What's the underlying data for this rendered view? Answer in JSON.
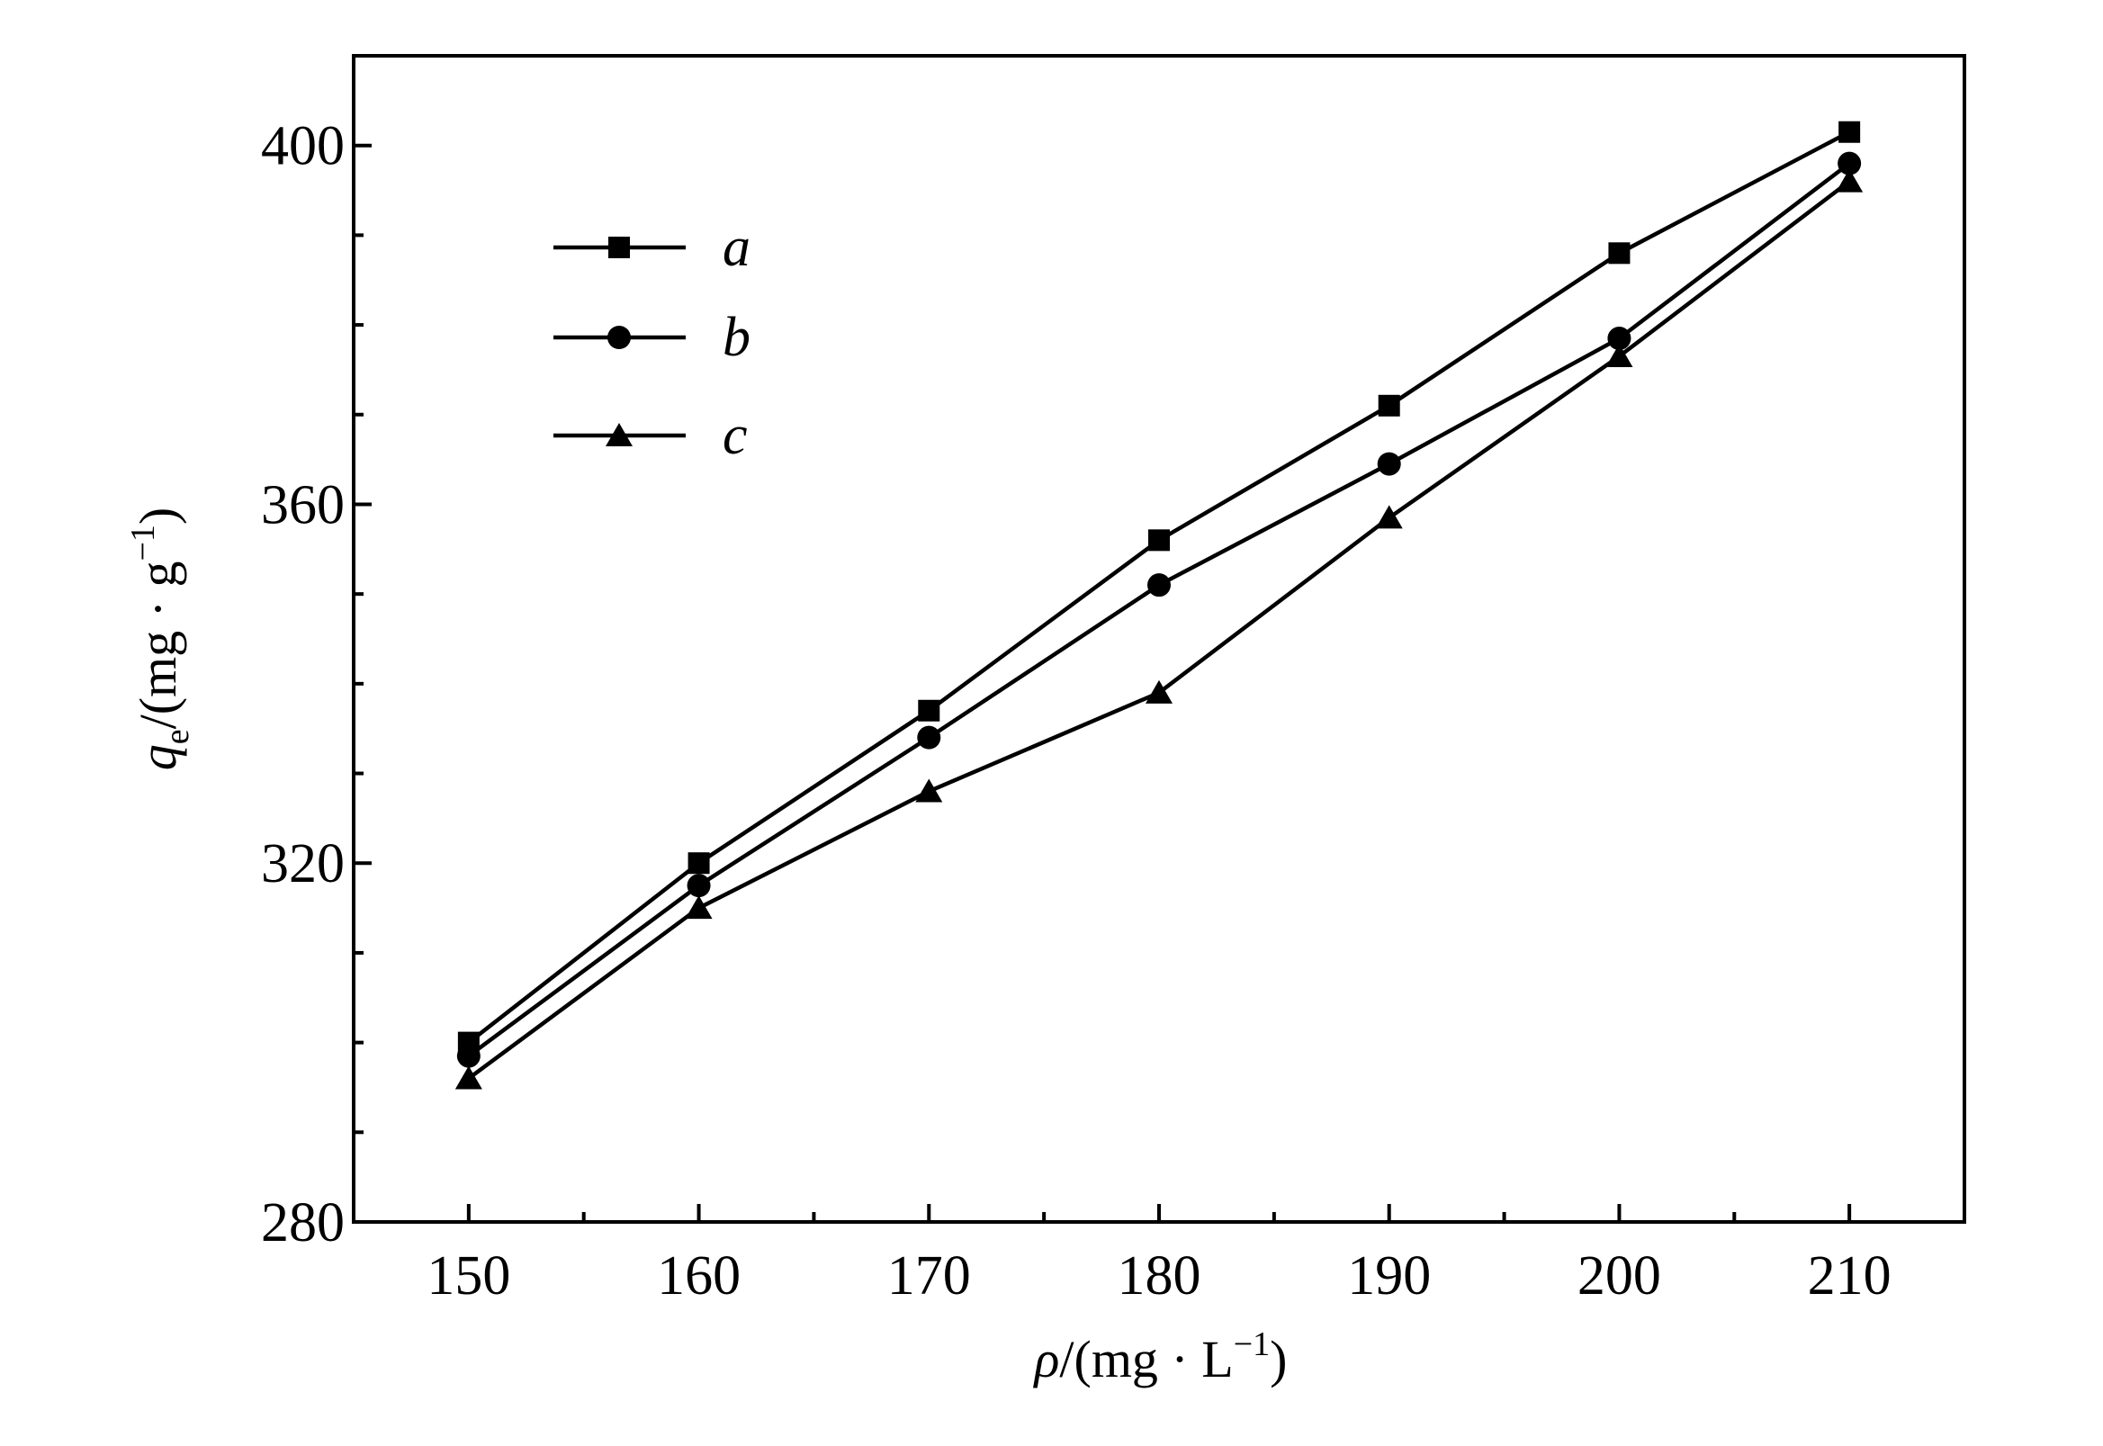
{
  "chart_data": {
    "type": "line",
    "x": [
      150,
      160,
      170,
      180,
      190,
      200,
      210
    ],
    "series": [
      {
        "name": "a",
        "marker": "square",
        "values": [
          300,
          320,
          337,
          356,
          371,
          388,
          401.5
        ]
      },
      {
        "name": "b",
        "marker": "circle",
        "values": [
          298.5,
          317.5,
          334,
          351,
          364.5,
          378.5,
          398
        ]
      },
      {
        "name": "c",
        "marker": "triangle",
        "values": [
          296,
          315,
          328,
          339,
          358.5,
          376.5,
          396
        ]
      }
    ],
    "xlim": [
      145,
      215
    ],
    "ylim": [
      280,
      410
    ],
    "xticks_major": [
      150,
      160,
      170,
      180,
      190,
      200,
      210
    ],
    "xticks_minor": [
      155,
      165,
      175,
      185,
      195,
      205
    ],
    "yticks_major": [
      280,
      320,
      360,
      400
    ],
    "yticks_minor": [
      290,
      300,
      310,
      330,
      340,
      350,
      370,
      380,
      390
    ],
    "xtick_labels": [
      "150",
      "160",
      "170",
      "180",
      "190",
      "200",
      "210"
    ],
    "ytick_labels": [
      "280",
      "320",
      "360",
      "400"
    ],
    "xlabel": {
      "symbol": "ρ",
      "unit_prefix": "/(mg · L",
      "exp": "−1",
      "suffix": ")"
    },
    "ylabel": {
      "symbol": "q",
      "subscript": "e",
      "unit_prefix": "/(mg · g",
      "exp": "−1",
      "suffix": ")"
    },
    "legend_position": "top-left",
    "grid": false,
    "line_color": "#000000"
  }
}
